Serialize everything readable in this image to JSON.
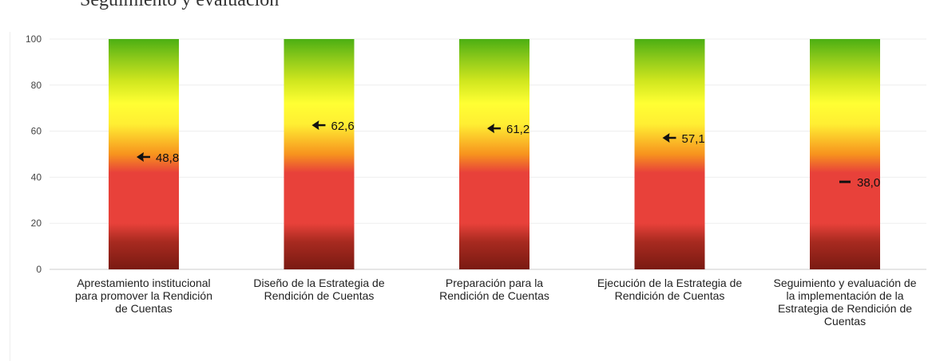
{
  "page": {
    "title": "Seguimiento y evaluación"
  },
  "colors": {
    "gradient": [
      "#7a1a12",
      "#a82a20",
      "#e8413a",
      "#e8413a",
      "#f7931e",
      "#ffee33",
      "#ffff33",
      "#cfe61e",
      "#8ac81a",
      "#4caf13"
    ],
    "marker": "#111111",
    "grid": "#eeeeee"
  },
  "chart_data": {
    "type": "bar",
    "title": "",
    "xlabel": "",
    "ylabel": "",
    "ylim": [
      0,
      100
    ],
    "yticks": [
      "0",
      "20",
      "40",
      "60",
      "80",
      "100"
    ],
    "grid": true,
    "categories": [
      [
        "Aprestamiento institucional",
        "para promover la Rendición",
        "de Cuentas"
      ],
      [
        "Diseño de la Estrategia de",
        "Rendición de Cuentas"
      ],
      [
        "Preparación para la",
        "Rendición de Cuentas"
      ],
      [
        "Ejecución de la Estrategia de",
        "Rendición de Cuentas"
      ],
      [
        "Seguimiento y evaluación de",
        "la implementación de la",
        "Estrategia de Rendición de",
        "Cuentas"
      ]
    ],
    "values": [
      48.8,
      62.6,
      61.2,
      57.1,
      38.0
    ],
    "value_labels": [
      "48,8",
      "62,6",
      "61,2",
      "57,1",
      "38,0"
    ],
    "markers": [
      "arrow",
      "arrow",
      "arrow",
      "arrow",
      "dash"
    ]
  }
}
